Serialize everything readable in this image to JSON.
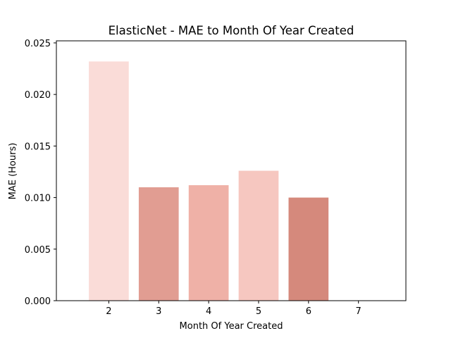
{
  "chart_data": {
    "type": "bar",
    "title": "ElasticNet - MAE to Month Of Year Created",
    "xlabel": "Month Of Year Created",
    "ylabel": "MAE (Hours)",
    "categories": [
      "2",
      "3",
      "4",
      "5",
      "6",
      "7"
    ],
    "values": [
      0.0232,
      0.011,
      0.0112,
      0.0126,
      0.01,
      0.0
    ],
    "colors": [
      "#fadcd8",
      "#e19d92",
      "#efb1a7",
      "#f6c7c0",
      "#d5897c",
      "#ca7a6b"
    ],
    "x_ticks": [
      "2",
      "3",
      "4",
      "5",
      "6",
      "7"
    ],
    "y_ticks": [
      "0.000",
      "0.005",
      "0.010",
      "0.015",
      "0.020",
      "0.025"
    ],
    "y_tick_values": [
      0,
      0.005,
      0.01,
      0.015,
      0.02,
      0.025
    ],
    "ylim": [
      0,
      0.0252
    ],
    "xlim": [
      0.95,
      7.95
    ],
    "grid": false,
    "legend": "none"
  }
}
